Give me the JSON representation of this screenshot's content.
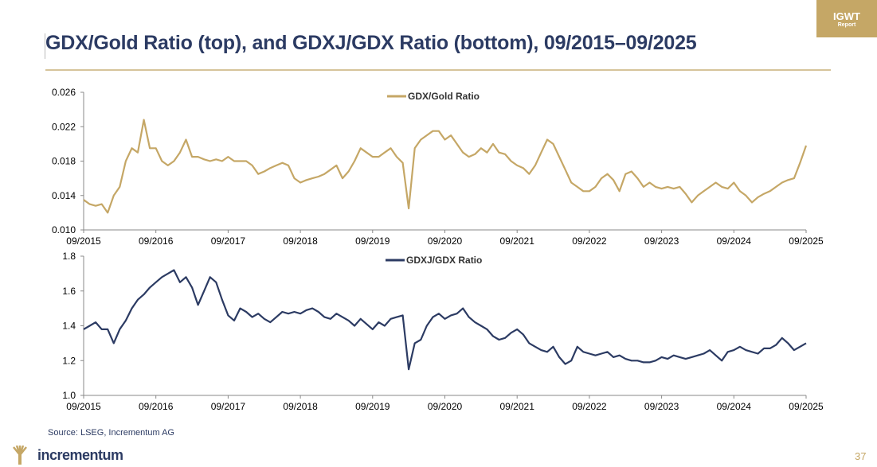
{
  "header": {
    "title": "GDX/Gold Ratio (top), and GDXJ/GDX Ratio (bottom), 09/2015–09/2025",
    "badge_line1": "IGWT",
    "badge_line2": "Report"
  },
  "footer": {
    "source": "Source: LSEG, Incrementum AG",
    "logo_text": "incrementum",
    "page_number": "37"
  },
  "colors": {
    "gold": "#c5a766",
    "navy": "#2c3b63"
  },
  "chart_data": [
    {
      "type": "line",
      "title": "",
      "legend": [
        "GDX/Gold Ratio"
      ],
      "legend_position": "top-center",
      "x_unit": "months since 09/2015",
      "xticks": [
        "09/2015",
        "09/2016",
        "09/2017",
        "09/2018",
        "09/2019",
        "09/2020",
        "09/2021",
        "09/2022",
        "09/2023",
        "09/2024",
        "09/2025"
      ],
      "yticks": [
        "0.010",
        "0.014",
        "0.018",
        "0.022",
        "0.026"
      ],
      "ylim": [
        0.01,
        0.026
      ],
      "grid": false,
      "series": [
        {
          "name": "GDX/Gold Ratio",
          "color": "#c5a766",
          "values": [
            0.0135,
            0.013,
            0.0128,
            0.013,
            0.012,
            0.014,
            0.015,
            0.018,
            0.0195,
            0.019,
            0.0228,
            0.0195,
            0.0195,
            0.018,
            0.0175,
            0.018,
            0.019,
            0.0205,
            0.0185,
            0.0185,
            0.0182,
            0.018,
            0.0182,
            0.018,
            0.0185,
            0.018,
            0.018,
            0.018,
            0.0175,
            0.0165,
            0.0168,
            0.0172,
            0.0175,
            0.0178,
            0.0175,
            0.016,
            0.0155,
            0.0158,
            0.016,
            0.0162,
            0.0165,
            0.017,
            0.0175,
            0.016,
            0.0168,
            0.018,
            0.0195,
            0.019,
            0.0185,
            0.0185,
            0.019,
            0.0195,
            0.0185,
            0.0178,
            0.0125,
            0.0195,
            0.0205,
            0.021,
            0.0215,
            0.0215,
            0.0205,
            0.021,
            0.02,
            0.019,
            0.0185,
            0.0188,
            0.0195,
            0.019,
            0.02,
            0.019,
            0.0188,
            0.018,
            0.0175,
            0.0172,
            0.0165,
            0.0175,
            0.019,
            0.0205,
            0.02,
            0.0185,
            0.017,
            0.0155,
            0.015,
            0.0145,
            0.0145,
            0.015,
            0.016,
            0.0165,
            0.0158,
            0.0145,
            0.0165,
            0.0168,
            0.016,
            0.015,
            0.0155,
            0.015,
            0.0148,
            0.015,
            0.0148,
            0.015,
            0.0142,
            0.0132,
            0.014,
            0.0145,
            0.015,
            0.0155,
            0.015,
            0.0148,
            0.0155,
            0.0145,
            0.014,
            0.0132,
            0.0138,
            0.0142,
            0.0145,
            0.015,
            0.0155,
            0.0158,
            0.016,
            0.0178,
            0.0198
          ]
        }
      ]
    },
    {
      "type": "line",
      "title": "",
      "legend": [
        "GDXJ/GDX Ratio"
      ],
      "legend_position": "top-center",
      "x_unit": "months since 09/2015",
      "xticks": [
        "09/2015",
        "09/2016",
        "09/2017",
        "09/2018",
        "09/2019",
        "09/2020",
        "09/2021",
        "09/2022",
        "09/2023",
        "09/2024",
        "09/2025"
      ],
      "yticks": [
        "1.0",
        "1.2",
        "1.4",
        "1.6",
        "1.8"
      ],
      "ylim": [
        1.0,
        1.8
      ],
      "grid": false,
      "series": [
        {
          "name": "GDXJ/GDX Ratio",
          "color": "#2c3b63",
          "values": [
            1.38,
            1.4,
            1.42,
            1.38,
            1.38,
            1.3,
            1.38,
            1.43,
            1.5,
            1.55,
            1.58,
            1.62,
            1.65,
            1.68,
            1.7,
            1.72,
            1.65,
            1.68,
            1.62,
            1.52,
            1.6,
            1.68,
            1.65,
            1.55,
            1.46,
            1.43,
            1.5,
            1.48,
            1.45,
            1.47,
            1.44,
            1.42,
            1.45,
            1.48,
            1.47,
            1.48,
            1.47,
            1.49,
            1.5,
            1.48,
            1.45,
            1.44,
            1.47,
            1.45,
            1.43,
            1.4,
            1.44,
            1.41,
            1.38,
            1.42,
            1.4,
            1.44,
            1.45,
            1.46,
            1.15,
            1.3,
            1.32,
            1.4,
            1.45,
            1.47,
            1.44,
            1.46,
            1.47,
            1.5,
            1.45,
            1.42,
            1.4,
            1.38,
            1.34,
            1.32,
            1.33,
            1.36,
            1.38,
            1.35,
            1.3,
            1.28,
            1.26,
            1.25,
            1.28,
            1.22,
            1.18,
            1.2,
            1.28,
            1.25,
            1.24,
            1.23,
            1.24,
            1.25,
            1.22,
            1.23,
            1.21,
            1.2,
            1.2,
            1.19,
            1.19,
            1.2,
            1.22,
            1.21,
            1.23,
            1.22,
            1.21,
            1.22,
            1.23,
            1.24,
            1.26,
            1.23,
            1.2,
            1.25,
            1.26,
            1.28,
            1.26,
            1.25,
            1.24,
            1.27,
            1.27,
            1.29,
            1.33,
            1.3,
            1.26,
            1.28,
            1.3
          ]
        }
      ]
    }
  ]
}
